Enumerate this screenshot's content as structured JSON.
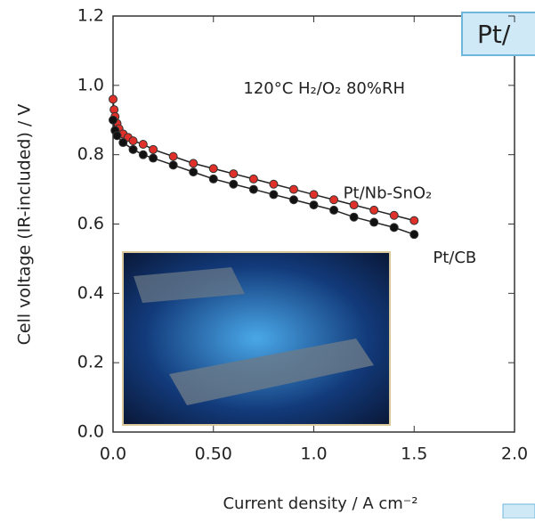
{
  "chart_data": {
    "type": "line",
    "x_label": "Current density / A cm⁻²",
    "y_label": "Cell voltage (IR-included) / V",
    "annotations": [
      "120°C H₂/O₂ 80%RH",
      "Pt/"
    ],
    "xlim": [
      0,
      2.0
    ],
    "ylim": [
      0,
      1.2
    ],
    "xticks": [
      {
        "value": 0,
        "label": "0.0"
      },
      {
        "value": 0.5,
        "label": "0.50"
      },
      {
        "value": 1,
        "label": "1.0"
      },
      1.5,
      {
        "value": 2,
        "label": "2.0"
      }
    ],
    "yticks": [
      {
        "value": 0,
        "label": "0.0"
      },
      0.2,
      0.4,
      0.6,
      0.8,
      {
        "value": 1,
        "label": "1.0"
      },
      1.2
    ],
    "series": [
      {
        "name": "Pt/Nb-SnO₂",
        "color": "#e0302a",
        "x": [
          0,
          0.005,
          0.01,
          0.02,
          0.03,
          0.05,
          0.075,
          0.1,
          0.15,
          0.2,
          0.3,
          0.4,
          0.5,
          0.6,
          0.7,
          0.8,
          0.9,
          1.0,
          1.1,
          1.2,
          1.3,
          1.4,
          1.5
        ],
        "values": [
          0.96,
          0.93,
          0.91,
          0.89,
          0.875,
          0.86,
          0.85,
          0.84,
          0.83,
          0.815,
          0.795,
          0.775,
          0.76,
          0.745,
          0.73,
          0.715,
          0.7,
          0.685,
          0.67,
          0.655,
          0.64,
          0.625,
          0.61
        ]
      },
      {
        "name": "Pt/CB",
        "color": "#111111",
        "x": [
          0,
          0.01,
          0.02,
          0.05,
          0.1,
          0.15,
          0.2,
          0.3,
          0.4,
          0.5,
          0.6,
          0.7,
          0.8,
          0.9,
          1.0,
          1.1,
          1.2,
          1.3,
          1.4,
          1.5
        ],
        "values": [
          0.9,
          0.87,
          0.855,
          0.835,
          0.815,
          0.8,
          0.79,
          0.77,
          0.75,
          0.73,
          0.715,
          0.7,
          0.685,
          0.67,
          0.655,
          0.64,
          0.62,
          0.605,
          0.59,
          0.57
        ]
      }
    ]
  }
}
